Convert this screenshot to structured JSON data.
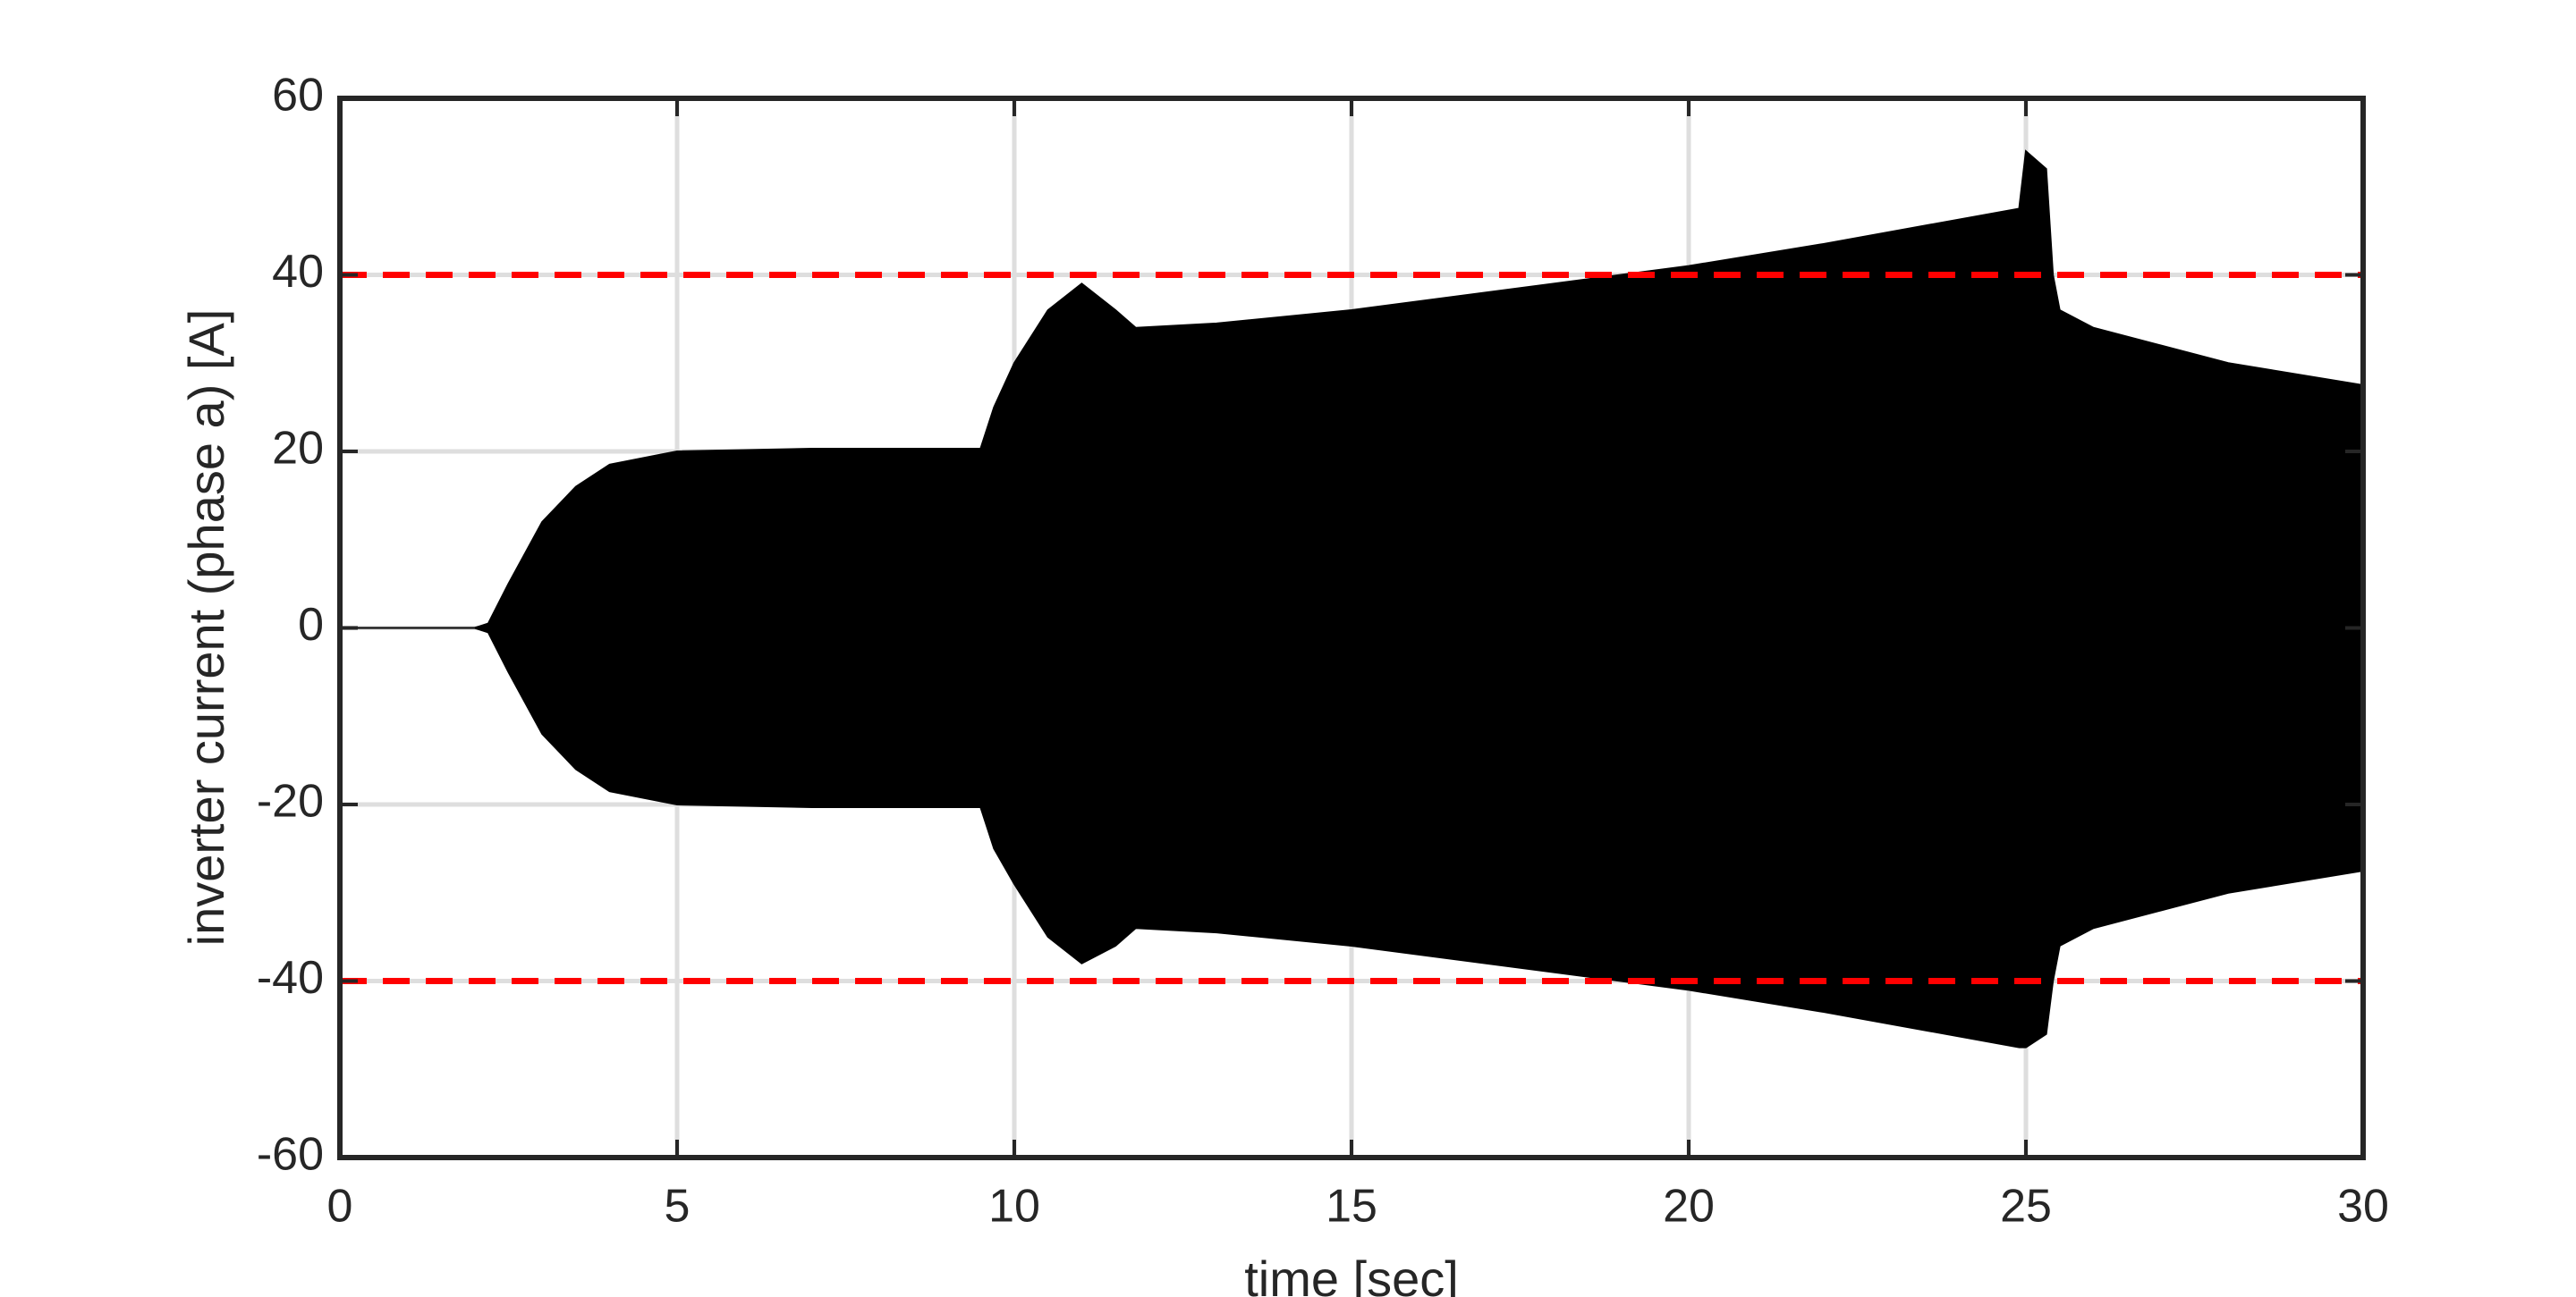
{
  "chart_data": {
    "type": "envelope",
    "xlabel": "time [sec]",
    "ylabel": "inverter current (phase a) [A]",
    "x": [
      0,
      1,
      2,
      2.2,
      2.5,
      3,
      3.5,
      4,
      5,
      7,
      9.5,
      9.7,
      10,
      10.5,
      11,
      11.5,
      11.8,
      13,
      15,
      18,
      20,
      22,
      24.9,
      25,
      25.3,
      25.4,
      25.5,
      26,
      27,
      28,
      30
    ],
    "upper": [
      0,
      0,
      0,
      0.5,
      5,
      12,
      16,
      18.5,
      20,
      20.3,
      20.3,
      25,
      30,
      36,
      39,
      36,
      34,
      34.5,
      36,
      39,
      41,
      43.5,
      47.5,
      54,
      52,
      40,
      36,
      34,
      32,
      30,
      27.5
    ],
    "lower": [
      0,
      0,
      0,
      -0.5,
      -5,
      -12,
      -16,
      -18.5,
      -20,
      -20.3,
      -20.3,
      -25,
      -29,
      -35,
      -38,
      -36,
      -34,
      -34.5,
      -36,
      -39,
      -41,
      -43.5,
      -47.5,
      -47.5,
      -46,
      -40,
      -36,
      -34,
      -32,
      -30,
      -27.5
    ],
    "color": "#000000",
    "hlines": [
      {
        "value": 40,
        "color": "#ff0000"
      },
      {
        "value": -40,
        "color": "#ff0000"
      }
    ],
    "xlim": [
      0,
      30
    ],
    "xticks": [
      0,
      5,
      10,
      15,
      20,
      25,
      30
    ],
    "ylim": [
      -60,
      60
    ],
    "yticks": [
      -60,
      -40,
      -20,
      0,
      20,
      40,
      60
    ],
    "grid": true
  }
}
